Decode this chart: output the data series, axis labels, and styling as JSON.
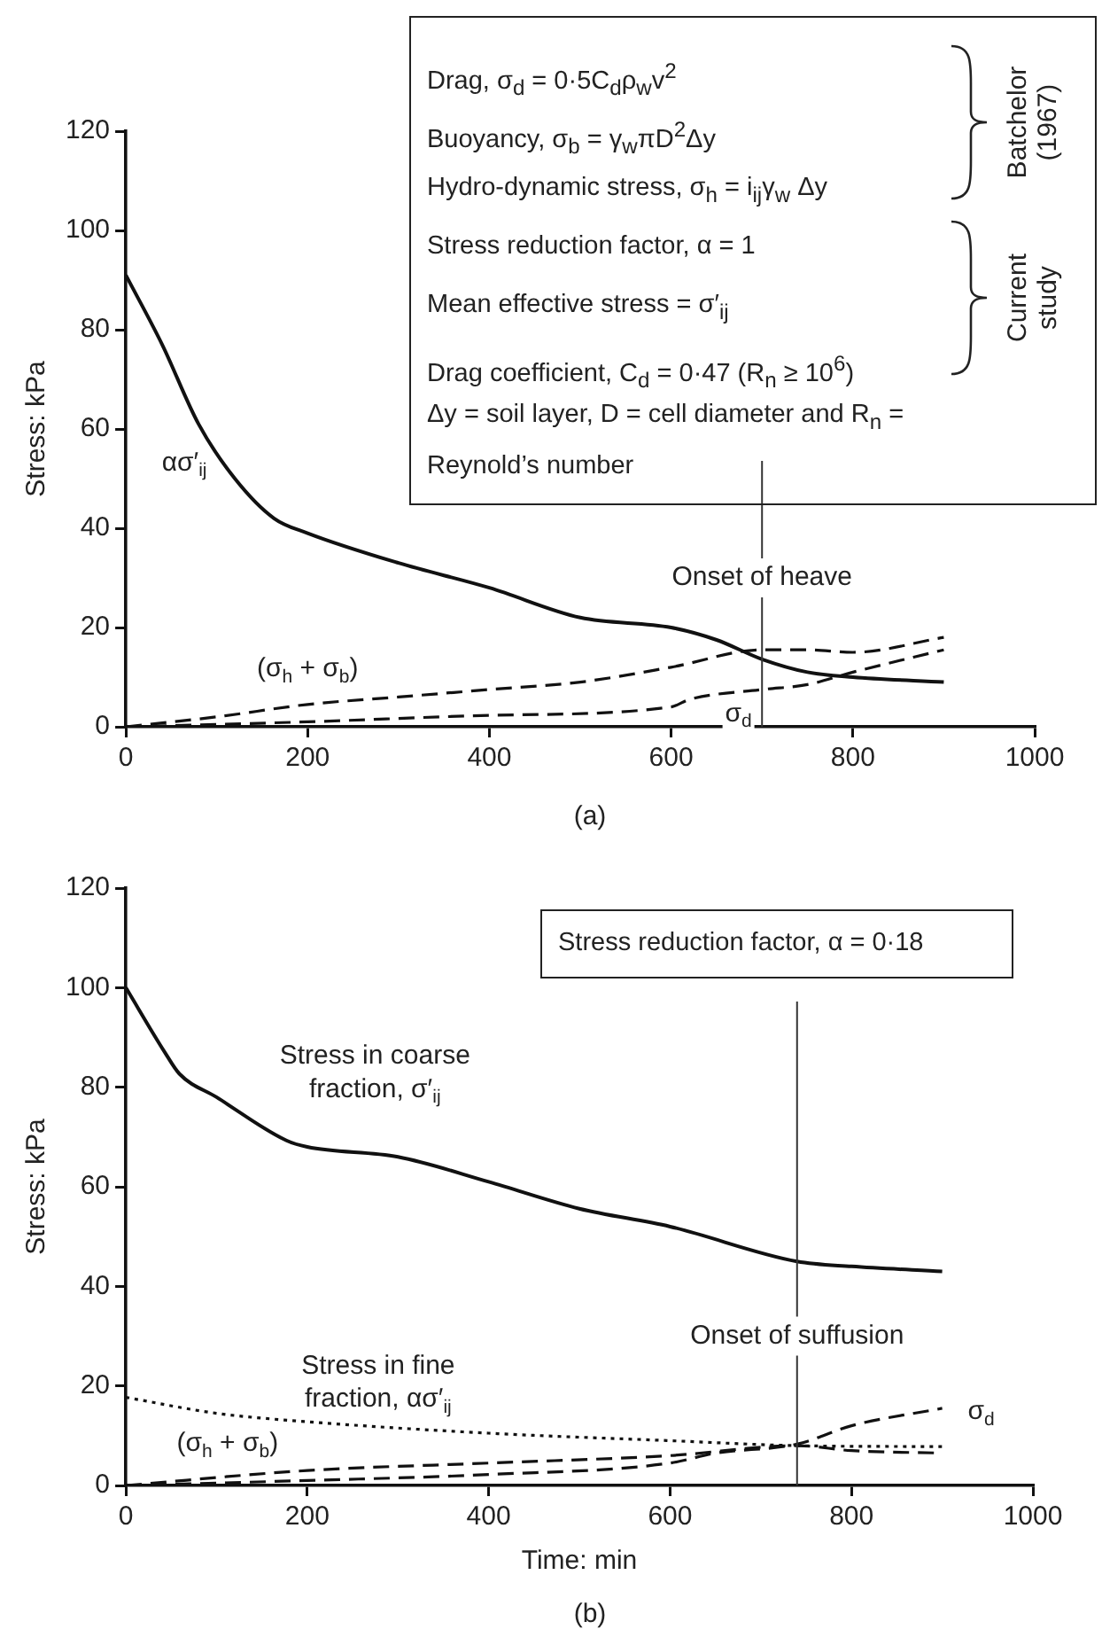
{
  "chart_data": [
    {
      "type": "line",
      "ylabel": "Stress: kPa",
      "xlim": [
        0,
        1000
      ],
      "ylim": [
        0,
        120
      ],
      "xticks": [
        0,
        200,
        400,
        600,
        800,
        1000
      ],
      "yticks": [
        0,
        20,
        40,
        60,
        80,
        100,
        120
      ],
      "series": [
        {
          "name": "ασ′$_{ij}$",
          "color": "#111111",
          "line_style": "solid",
          "x": [
            0,
            40,
            80,
            120,
            163,
            200,
            300,
            400,
            500,
            600,
            650,
            700,
            750,
            800,
            900
          ],
          "values": [
            91,
            77,
            61,
            50,
            42,
            39,
            33,
            28,
            22,
            20,
            17.5,
            13.6,
            11,
            10,
            9
          ]
        },
        {
          "name": "(σ$_{h}$ + σ$_{b}$)",
          "color": "#111111",
          "line_style": "dashed",
          "x": [
            0,
            100,
            200,
            300,
            400,
            500,
            600,
            700,
            750,
            800,
            900
          ],
          "values": [
            0,
            2,
            4.5,
            6,
            7.5,
            9,
            12,
            15.5,
            15.5,
            15,
            18
          ]
        },
        {
          "name": "σ$_{d}$",
          "color": "#111111",
          "line_style": "dashed",
          "x": [
            0,
            200,
            400,
            600,
            620,
            700,
            750,
            800,
            900
          ],
          "values": [
            0,
            1,
            2.3,
            4,
            5.5,
            7.5,
            8.5,
            11,
            15.5
          ]
        }
      ],
      "ref_lines": [
        {
          "axis": "x",
          "value": 700,
          "label": "Onset of heave"
        }
      ],
      "annotations": [
        "Drag, σ$_{d}$ = 0·5C$_{d}$ρ$_{w}$v$^{2}$",
        "Buoyancy, σ$_{b}$ = γ$_{w}$πD$^{2}$Δy",
        "Hydro-dynamic stress, σ$_{h}$ = i$_{ij}$γ$_{w}$ Δy",
        "Stress reduction factor, α = 1",
        "Mean effective stress = σ′$_{ij}$",
        "Drag coefficient, C$_{d}$ = 0·47 (R$_{n}$ ≥ 10$^{6}$)",
        "Δy = soil layer, D = cell diameter and R$_{n}$ = Reynold’s number",
        "Batchelor\n(1967)",
        "Current\nstudy",
        "(a)"
      ]
    },
    {
      "type": "line",
      "xlabel": "Time: min",
      "ylabel": "Stress: kPa",
      "xlim": [
        0,
        1000
      ],
      "ylim": [
        0,
        120
      ],
      "xticks": [
        0,
        200,
        400,
        600,
        800,
        1000
      ],
      "yticks": [
        0,
        20,
        40,
        60,
        80,
        100,
        120
      ],
      "series": [
        {
          "name": "Stress in coarse\nfraction, σ′$_{ij}$",
          "color": "#111111",
          "line_style": "solid",
          "x": [
            0,
            43,
            59,
            100,
            177,
            200,
            300,
            400,
            500,
            600,
            740,
            800,
            900
          ],
          "values": [
            100,
            87,
            82.7,
            78,
            69.3,
            68,
            66,
            61,
            55.6,
            52,
            45,
            44,
            43
          ]
        },
        {
          "name": "Stress in fine\nfraction, ασ′$_{ij}$",
          "color": "#111111",
          "line_style": "dotted",
          "x": [
            0,
            100,
            200,
            400,
            600,
            740,
            900
          ],
          "values": [
            17.7,
            14.5,
            12.8,
            10.5,
            9,
            8,
            7.8
          ]
        },
        {
          "name": "(σ$_{h}$ + σ$_{b}$)",
          "color": "#111111",
          "line_style": "dashed",
          "x": [
            0,
            200,
            400,
            600,
            740,
            800,
            900
          ],
          "values": [
            0,
            3,
            4.5,
            6,
            8,
            7,
            6.5
          ]
        },
        {
          "name": "σ$_{d}$",
          "color": "#111111",
          "line_style": "dashed",
          "x": [
            0,
            200,
            400,
            600,
            650,
            740,
            800,
            900
          ],
          "values": [
            0,
            1,
            2.2,
            4.5,
            6.5,
            8.3,
            12,
            15.5
          ]
        }
      ],
      "ref_lines": [
        {
          "axis": "x",
          "value": 740,
          "label": "Onset of suffusion"
        }
      ],
      "annotations": [
        "Stress reduction factor, α = 0·18",
        "(b)"
      ]
    }
  ]
}
